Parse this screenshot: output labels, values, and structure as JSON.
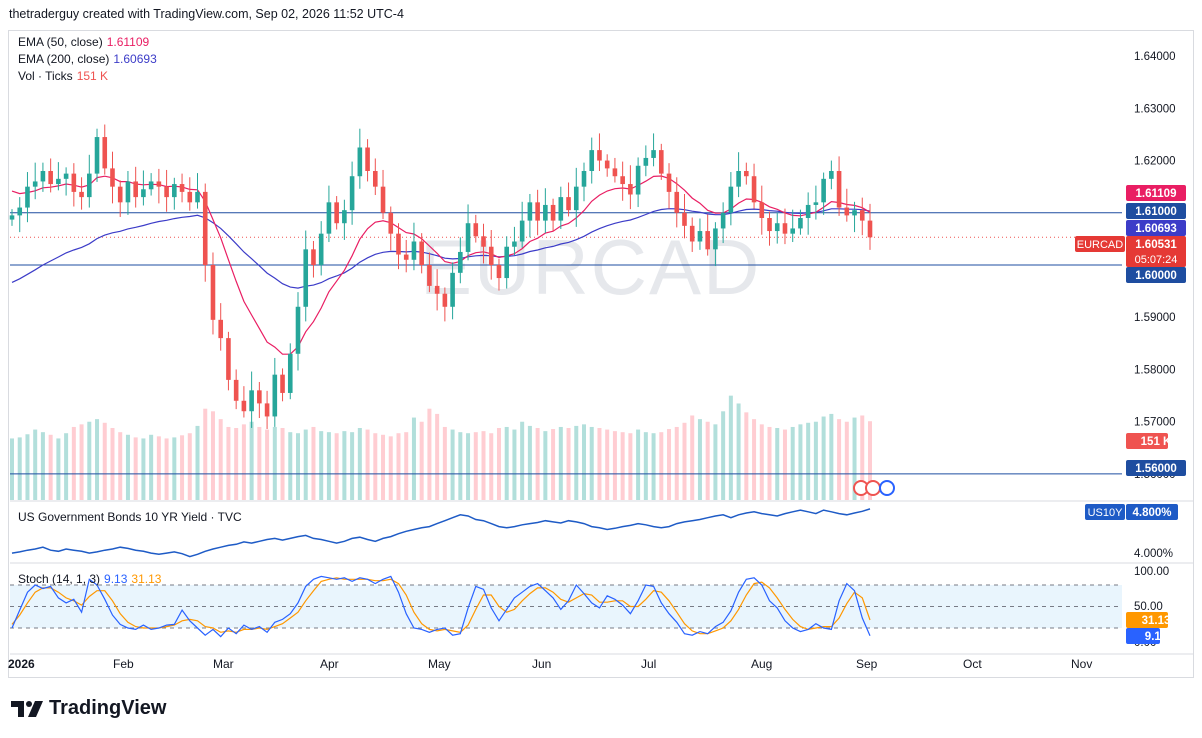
{
  "header": {
    "text": "thetraderguy created with TradingView.com, Sep 02, 2026 11:52 UTC-4"
  },
  "watermark": "EURCAD",
  "branding": {
    "logo_text": "TradingView"
  },
  "legend": {
    "ema50": {
      "label": "EMA (50, close)",
      "value": "1.61109",
      "color": "#e91e63"
    },
    "ema200": {
      "label": "EMA (200, close)",
      "value": "1.60693",
      "color": "#3c3cc8"
    },
    "vol": {
      "label": "Vol · Ticks",
      "value": "151 K",
      "color": "#ef5350"
    },
    "us10y": {
      "label": "US Government Bonds 10 YR Yield · TVC"
    },
    "stoch": {
      "label": "Stoch (14, 1, 3)",
      "k_value": "9.13",
      "d_value": "31.13",
      "k_color": "#2962ff",
      "d_color": "#ff9800"
    }
  },
  "colors": {
    "up": "#26a69a",
    "down": "#ef5350",
    "vol_up": "#b2dfdb",
    "vol_down": "#ffcdd2",
    "hline": "#1e4da0",
    "current_badge": "#e53935",
    "us10y_line": "#1e5bc6"
  },
  "price_axis": {
    "ticks": [
      "1.64000",
      "1.63000",
      "1.62000",
      "1.61000",
      "1.60000",
      "1.59000",
      "1.58000",
      "1.57000",
      "1.56000"
    ],
    "badges": {
      "ema50": "1.61109",
      "level_top": "1.61000",
      "ema200": "1.60693",
      "symbol": "EURCAD",
      "current": "1.60531",
      "countdown": "05:07:24",
      "level_bottom": "1.60000",
      "volume": "151 K",
      "level_low": "1.56000"
    }
  },
  "us10y_axis": {
    "symbol": "US10Y",
    "current": "4.800%",
    "tick": "4.000%"
  },
  "stoch_axis": {
    "ticks": [
      "100.00",
      "50.00",
      "0.00"
    ],
    "d_badge": "31.13",
    "k_badge": "9.13"
  },
  "time_axis": {
    "labels": [
      "2026",
      "Feb",
      "Mar",
      "Apr",
      "May",
      "Jun",
      "Jul",
      "Aug",
      "Sep",
      "Oct",
      "Nov"
    ]
  },
  "chart_data": {
    "type": "candlestick",
    "symbol": "EURCAD",
    "interval": "1D",
    "ylim": [
      1.555,
      1.645
    ],
    "horizontal_lines": [
      1.61,
      1.6,
      1.56
    ],
    "last_close": 1.60531,
    "ema50_last": 1.61109,
    "ema200_last": 1.60693,
    "x_labels": [
      "2026",
      "Feb",
      "Mar",
      "Apr",
      "May",
      "Jun",
      "Jul",
      "Aug",
      "Sep",
      "Oct",
      "Nov"
    ],
    "close": [
      1.6095,
      1.611,
      1.615,
      1.616,
      1.618,
      1.6155,
      1.6165,
      1.6175,
      1.614,
      1.613,
      1.6175,
      1.6245,
      1.6185,
      1.615,
      1.612,
      1.616,
      1.613,
      1.6145,
      1.616,
      1.615,
      1.613,
      1.6155,
      1.614,
      1.612,
      1.614,
      1.6,
      1.5895,
      1.586,
      1.578,
      1.574,
      1.572,
      1.576,
      1.5735,
      1.571,
      1.579,
      1.5755,
      1.583,
      1.592,
      1.603,
      1.6,
      1.606,
      1.612,
      1.608,
      1.6105,
      1.617,
      1.6225,
      1.618,
      1.615,
      1.61,
      1.606,
      1.602,
      1.601,
      1.6045,
      1.6,
      1.596,
      1.5945,
      1.592,
      1.5985,
      1.6025,
      1.608,
      1.6055,
      1.6035,
      1.6,
      1.5975,
      1.6035,
      1.6045,
      1.6085,
      1.612,
      1.6085,
      1.6115,
      1.6085,
      1.613,
      1.6105,
      1.615,
      1.618,
      1.622,
      1.62,
      1.6185,
      1.617,
      1.6155,
      1.6135,
      1.619,
      1.6205,
      1.622,
      1.6175,
      1.614,
      1.61,
      1.6075,
      1.6045,
      1.6065,
      1.603,
      1.607,
      1.61,
      1.615,
      1.618,
      1.617,
      1.612,
      1.609,
      1.6065,
      1.608,
      1.606,
      1.607,
      1.609,
      1.6115,
      1.612,
      1.6165,
      1.618,
      1.611,
      1.6095,
      1.6105,
      1.6085,
      1.6053
    ],
    "volume_k": [
      118,
      120,
      126,
      135,
      130,
      125,
      118,
      128,
      140,
      145,
      150,
      155,
      148,
      138,
      130,
      125,
      120,
      118,
      125,
      122,
      118,
      120,
      124,
      128,
      142,
      175,
      170,
      155,
      140,
      138,
      145,
      150,
      140,
      135,
      140,
      138,
      130,
      128,
      135,
      140,
      132,
      130,
      128,
      132,
      130,
      138,
      135,
      128,
      125,
      122,
      128,
      130,
      158,
      150,
      175,
      165,
      140,
      135,
      130,
      128,
      130,
      132,
      128,
      138,
      140,
      135,
      150,
      142,
      138,
      132,
      136,
      140,
      138,
      142,
      145,
      140,
      138,
      135,
      132,
      130,
      128,
      135,
      130,
      128,
      130,
      136,
      140,
      148,
      162,
      155,
      150,
      145,
      170,
      200,
      185,
      168,
      155,
      145,
      140,
      138,
      135,
      140,
      145,
      148,
      150,
      160,
      165,
      155,
      150,
      158,
      162,
      151
    ],
    "us10y_ylim": [
      3.95,
      4.9
    ],
    "us10y_last": 4.8,
    "us10y": [
      4.05,
      4.07,
      4.1,
      4.12,
      4.15,
      4.1,
      4.08,
      4.12,
      4.1,
      4.08,
      4.05,
      4.07,
      4.1,
      4.12,
      4.15,
      4.13,
      4.1,
      4.08,
      4.05,
      4.03,
      4.05,
      4.07,
      4.04,
      3.99,
      4.03,
      4.08,
      4.12,
      4.15,
      4.18,
      4.2,
      4.24,
      4.22,
      4.25,
      4.28,
      4.3,
      4.27,
      4.3,
      4.33,
      4.35,
      4.3,
      4.28,
      4.25,
      4.22,
      4.25,
      4.3,
      4.32,
      4.28,
      4.25,
      4.3,
      4.33,
      4.38,
      4.42,
      4.45,
      4.48,
      4.5,
      4.55,
      4.6,
      4.65,
      4.7,
      4.68,
      4.62,
      4.6,
      4.55,
      4.5,
      4.48,
      4.5,
      4.53,
      4.55,
      4.57,
      4.6,
      4.58,
      4.56,
      4.6,
      4.58,
      4.55,
      4.5,
      4.48,
      4.45,
      4.47,
      4.5,
      4.52,
      4.55,
      4.53,
      4.5,
      4.48,
      4.5,
      4.55,
      4.58,
      4.6,
      4.62,
      4.65,
      4.68,
      4.7,
      4.65,
      4.7,
      4.73,
      4.75,
      4.72,
      4.7,
      4.68,
      4.72,
      4.75,
      4.78,
      4.75,
      4.72,
      4.78,
      4.75,
      4.72,
      4.7,
      4.73,
      4.76,
      4.8
    ],
    "stoch_ylim": [
      0,
      100
    ],
    "stoch_levels": [
      20,
      50,
      80
    ],
    "stoch_k": [
      20,
      45,
      70,
      80,
      75,
      78,
      62,
      55,
      60,
      42,
      88,
      80,
      60,
      38,
      25,
      20,
      18,
      24,
      18,
      20,
      24,
      25,
      45,
      30,
      20,
      10,
      18,
      8,
      20,
      12,
      24,
      18,
      22,
      14,
      28,
      32,
      40,
      55,
      78,
      88,
      92,
      90,
      88,
      90,
      85,
      90,
      88,
      82,
      88,
      92,
      70,
      40,
      20,
      18,
      14,
      18,
      20,
      10,
      12,
      48,
      78,
      74,
      48,
      30,
      46,
      62,
      70,
      78,
      82,
      72,
      62,
      46,
      58,
      80,
      68,
      55,
      48,
      65,
      60,
      52,
      40,
      58,
      80,
      78,
      55,
      40,
      28,
      12,
      10,
      15,
      12,
      22,
      28,
      44,
      70,
      88,
      90,
      80,
      58,
      48,
      30,
      20,
      15,
      18,
      26,
      20,
      18,
      58,
      82,
      72,
      34,
      9.13
    ],
    "stoch_d": [
      25,
      38,
      55,
      70,
      76,
      76,
      70,
      62,
      58,
      52,
      64,
      72,
      72,
      58,
      40,
      28,
      22,
      20,
      20,
      20,
      22,
      24,
      30,
      32,
      30,
      22,
      20,
      14,
      16,
      14,
      18,
      18,
      20,
      18,
      22,
      26,
      34,
      42,
      58,
      72,
      85,
      88,
      90,
      88,
      88,
      88,
      88,
      86,
      86,
      88,
      82,
      66,
      42,
      26,
      18,
      16,
      18,
      16,
      14,
      24,
      46,
      66,
      66,
      50,
      42,
      46,
      58,
      68,
      76,
      76,
      70,
      60,
      56,
      62,
      68,
      66,
      56,
      56,
      58,
      58,
      50,
      50,
      60,
      72,
      70,
      58,
      42,
      26,
      16,
      12,
      12,
      16,
      20,
      30,
      46,
      66,
      82,
      84,
      76,
      62,
      46,
      32,
      22,
      18,
      20,
      22,
      22,
      34,
      54,
      70,
      62,
      31.13
    ]
  }
}
